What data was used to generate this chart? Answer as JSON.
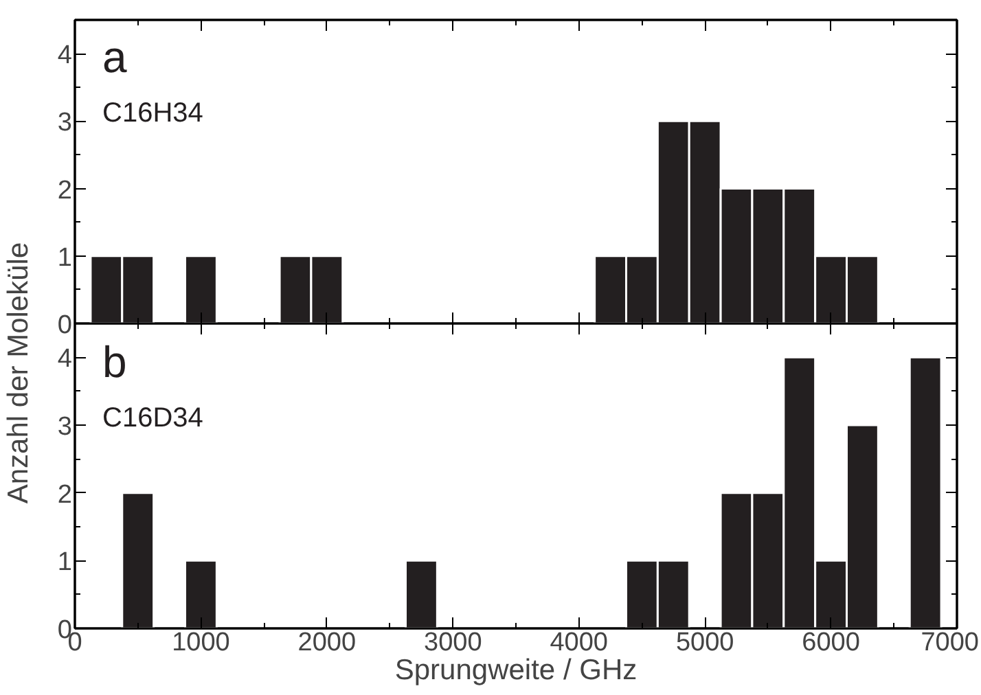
{
  "chart_data": [
    {
      "type": "histogram",
      "ylabel": "Anzahl der Moleküle",
      "annotations": [
        "a",
        "C16H34"
      ],
      "bins": [
        125,
        375,
        625,
        875,
        1125,
        1375,
        1625,
        1875,
        2125,
        2375,
        2625,
        2875,
        3125,
        3375,
        3625,
        3875,
        4125,
        4375,
        4625,
        4875,
        5125,
        5375,
        5625,
        5875,
        6125,
        6375,
        6625,
        6875
      ],
      "values": [
        1,
        1,
        0,
        1,
        0,
        0,
        1,
        1,
        0,
        0,
        0,
        0,
        0,
        0,
        0,
        0,
        1,
        1,
        3,
        3,
        2,
        2,
        2,
        1,
        1,
        0,
        0
      ],
      "color": "#231f20",
      "xlim": [
        0,
        7000
      ],
      "xticks": [
        0,
        1000,
        2000,
        3000,
        4000,
        5000,
        6000,
        7000
      ],
      "ylim": [
        0,
        4.5
      ],
      "yticks": [
        0,
        1,
        2,
        3,
        4
      ],
      "tick_labels": "y",
      "grid": false
    },
    {
      "type": "histogram",
      "xlabel": "Sprungweite / GHz",
      "annotations": [
        "b",
        "C16D34"
      ],
      "bins": [
        125,
        375,
        625,
        875,
        1125,
        1375,
        1625,
        1875,
        2125,
        2375,
        2625,
        2875,
        3125,
        3375,
        3625,
        3875,
        4125,
        4375,
        4625,
        4875,
        5125,
        5375,
        5625,
        5875,
        6125,
        6375,
        6625,
        6875
      ],
      "values": [
        0,
        2,
        0,
        1,
        0,
        0,
        0,
        0,
        0,
        0,
        1,
        0,
        0,
        0,
        0,
        0,
        0,
        1,
        1,
        0,
        2,
        2,
        4,
        1,
        3,
        0,
        4
      ],
      "color": "#231f20",
      "xlim": [
        0,
        7000
      ],
      "xticks": [
        0,
        1000,
        2000,
        3000,
        4000,
        5000,
        6000,
        7000
      ],
      "ylim": [
        0,
        4.5
      ],
      "yticks": [
        0,
        1,
        2,
        3,
        4
      ],
      "grid": false
    }
  ]
}
